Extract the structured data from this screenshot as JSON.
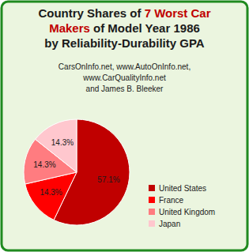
{
  "chart_data": {
    "type": "pie",
    "title": [
      [
        {
          "text": "Country Shares of "
        },
        {
          "text": "7 Worst Car",
          "color": "#c00000"
        }
      ],
      [
        {
          "text": "Makers",
          "color": "#c00000"
        },
        {
          "text": " of Model Year 1986"
        }
      ],
      [
        {
          "text": "by Reliability-Durability GPA"
        }
      ]
    ],
    "subtitle": [
      "CarsOnInfo.net, www.AutoOnInfo.net,",
      "www.CarQualityInfo.net",
      "and James B. Bleeker"
    ],
    "categories": [
      "United States",
      "France",
      "United Kingdom",
      "Japan"
    ],
    "values": [
      57.1,
      14.3,
      14.3,
      14.3
    ],
    "value_labels": [
      "57.1%",
      "14.3%",
      "14.3%",
      "14.3%"
    ],
    "colors": [
      "#c00000",
      "#ff0000",
      "#ff7c80",
      "#ffc7ce"
    ],
    "data_labels": true,
    "legend": "right"
  }
}
